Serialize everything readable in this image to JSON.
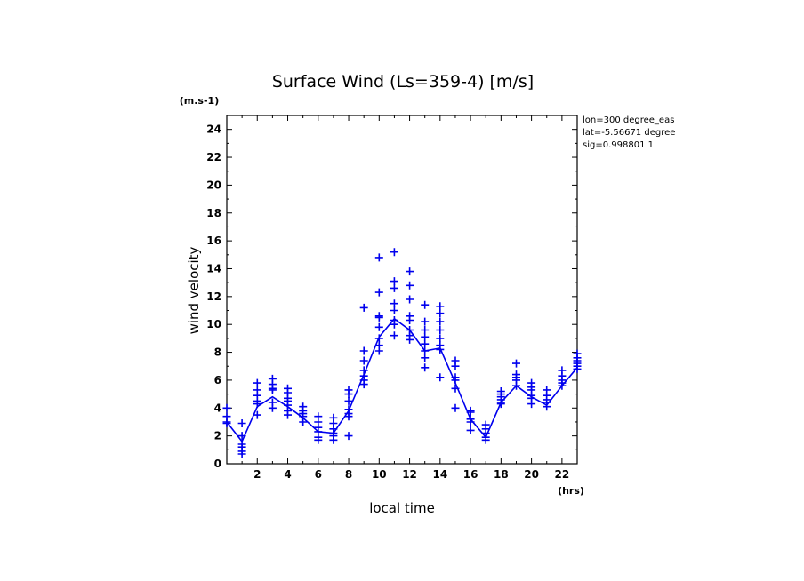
{
  "chart_data": {
    "type": "scatter",
    "title": "Surface Wind  (Ls=359-4) [m/s]",
    "ylabel": "wind velocity",
    "xlabel": "local time",
    "y_unit": "(m.s-1)",
    "x_unit": "(hrs)",
    "xlim": [
      0,
      23
    ],
    "ylim": [
      0,
      25
    ],
    "x_ticks": [
      2,
      4,
      6,
      8,
      10,
      12,
      14,
      16,
      18,
      20,
      22
    ],
    "y_ticks": [
      0,
      2,
      4,
      6,
      8,
      10,
      12,
      14,
      16,
      18,
      20,
      22,
      24
    ],
    "info": [
      "lon=300 degree_eas",
      "lat=-5.56671 degree",
      "sig=0.998801 1"
    ],
    "grid": false,
    "colors": {
      "series": "#0000ee",
      "axis": "#000000"
    },
    "series": [
      {
        "kind": "points",
        "marker": "+",
        "points": [
          [
            0,
            4.0
          ],
          [
            0,
            3.4
          ],
          [
            0,
            3.0
          ],
          [
            0,
            2.9
          ],
          [
            1,
            2.9
          ],
          [
            1,
            2.0
          ],
          [
            1,
            1.4
          ],
          [
            1,
            1.2
          ],
          [
            1,
            0.9
          ],
          [
            1,
            0.7
          ],
          [
            2,
            5.8
          ],
          [
            2,
            5.3
          ],
          [
            2,
            4.9
          ],
          [
            2,
            4.5
          ],
          [
            2,
            4.3
          ],
          [
            2,
            3.5
          ],
          [
            3,
            6.1
          ],
          [
            3,
            5.7
          ],
          [
            3,
            5.4
          ],
          [
            3,
            5.3
          ],
          [
            3,
            4.4
          ],
          [
            3,
            4.0
          ],
          [
            4,
            5.4
          ],
          [
            4,
            5.1
          ],
          [
            4,
            4.7
          ],
          [
            4,
            4.5
          ],
          [
            4,
            4.2
          ],
          [
            4,
            3.8
          ],
          [
            4,
            3.5
          ],
          [
            5,
            4.1
          ],
          [
            5,
            3.8
          ],
          [
            5,
            3.6
          ],
          [
            5,
            3.4
          ],
          [
            5,
            3.0
          ],
          [
            6,
            3.4
          ],
          [
            6,
            3.0
          ],
          [
            6,
            2.6
          ],
          [
            6,
            2.3
          ],
          [
            6,
            1.9
          ],
          [
            6,
            1.7
          ],
          [
            7,
            3.3
          ],
          [
            7,
            2.9
          ],
          [
            7,
            2.5
          ],
          [
            7,
            2.2
          ],
          [
            7,
            2.0
          ],
          [
            7,
            1.7
          ],
          [
            8,
            5.3
          ],
          [
            8,
            5.0
          ],
          [
            8,
            4.5
          ],
          [
            8,
            3.9
          ],
          [
            8,
            3.6
          ],
          [
            8,
            3.4
          ],
          [
            8,
            2.0
          ],
          [
            9,
            11.2
          ],
          [
            9,
            8.1
          ],
          [
            9,
            7.4
          ],
          [
            9,
            6.7
          ],
          [
            9,
            6.3
          ],
          [
            9,
            6.0
          ],
          [
            9,
            5.7
          ],
          [
            10,
            14.8
          ],
          [
            10,
            12.3
          ],
          [
            10,
            10.6
          ],
          [
            10,
            10.5
          ],
          [
            10,
            9.8
          ],
          [
            10,
            9.0
          ],
          [
            10,
            8.5
          ],
          [
            10,
            8.1
          ],
          [
            11,
            15.2
          ],
          [
            11,
            13.1
          ],
          [
            11,
            12.6
          ],
          [
            11,
            11.5
          ],
          [
            11,
            11.0
          ],
          [
            11,
            10.3
          ],
          [
            11,
            10.0
          ],
          [
            11,
            9.2
          ],
          [
            12,
            13.8
          ],
          [
            12,
            12.8
          ],
          [
            12,
            11.8
          ],
          [
            12,
            10.6
          ],
          [
            12,
            10.3
          ],
          [
            12,
            9.6
          ],
          [
            12,
            9.2
          ],
          [
            12,
            8.9
          ],
          [
            13,
            11.4
          ],
          [
            13,
            10.2
          ],
          [
            13,
            9.6
          ],
          [
            13,
            9.1
          ],
          [
            13,
            8.6
          ],
          [
            13,
            8.1
          ],
          [
            13,
            7.6
          ],
          [
            13,
            6.9
          ],
          [
            14,
            11.3
          ],
          [
            14,
            10.8
          ],
          [
            14,
            10.2
          ],
          [
            14,
            9.6
          ],
          [
            14,
            9.0
          ],
          [
            14,
            8.5
          ],
          [
            14,
            8.2
          ],
          [
            14,
            6.2
          ],
          [
            15,
            7.4
          ],
          [
            15,
            7.0
          ],
          [
            15,
            6.2
          ],
          [
            15,
            6.0
          ],
          [
            15,
            5.4
          ],
          [
            15,
            4.0
          ],
          [
            16,
            3.8
          ],
          [
            16,
            3.7
          ],
          [
            16,
            3.2
          ],
          [
            16,
            3.0
          ],
          [
            16,
            2.4
          ],
          [
            17,
            2.8
          ],
          [
            17,
            2.5
          ],
          [
            17,
            2.2
          ],
          [
            17,
            1.9
          ],
          [
            17,
            1.7
          ],
          [
            18,
            5.2
          ],
          [
            18,
            5.0
          ],
          [
            18,
            4.8
          ],
          [
            18,
            4.6
          ],
          [
            18,
            4.4
          ],
          [
            18,
            4.3
          ],
          [
            19,
            7.2
          ],
          [
            19,
            6.4
          ],
          [
            19,
            6.2
          ],
          [
            19,
            6.0
          ],
          [
            19,
            5.6
          ],
          [
            20,
            5.8
          ],
          [
            20,
            5.5
          ],
          [
            20,
            5.3
          ],
          [
            20,
            4.9
          ],
          [
            20,
            4.7
          ],
          [
            20,
            4.3
          ],
          [
            21,
            5.3
          ],
          [
            21,
            4.9
          ],
          [
            21,
            4.6
          ],
          [
            21,
            4.4
          ],
          [
            21,
            4.1
          ],
          [
            22,
            6.7
          ],
          [
            22,
            6.3
          ],
          [
            22,
            6.0
          ],
          [
            22,
            5.8
          ],
          [
            22,
            5.6
          ],
          [
            23,
            7.9
          ],
          [
            23,
            7.6
          ],
          [
            23,
            7.4
          ],
          [
            23,
            7.2
          ],
          [
            23,
            7.0
          ],
          [
            23,
            6.8
          ]
        ]
      },
      {
        "kind": "line",
        "points": [
          [
            0,
            3.0
          ],
          [
            1,
            1.6
          ],
          [
            2,
            4.1
          ],
          [
            3,
            4.8
          ],
          [
            4,
            4.1
          ],
          [
            5,
            3.3
          ],
          [
            6,
            2.3
          ],
          [
            7,
            2.2
          ],
          [
            8,
            3.8
          ],
          [
            9,
            6.4
          ],
          [
            10,
            9.1
          ],
          [
            11,
            10.4
          ],
          [
            12,
            9.6
          ],
          [
            13,
            8.1
          ],
          [
            14,
            8.3
          ],
          [
            15,
            5.8
          ],
          [
            16,
            3.2
          ],
          [
            17,
            1.9
          ],
          [
            18,
            4.4
          ],
          [
            19,
            5.6
          ],
          [
            20,
            4.8
          ],
          [
            21,
            4.2
          ],
          [
            22,
            5.6
          ],
          [
            23,
            6.9
          ]
        ]
      }
    ]
  }
}
